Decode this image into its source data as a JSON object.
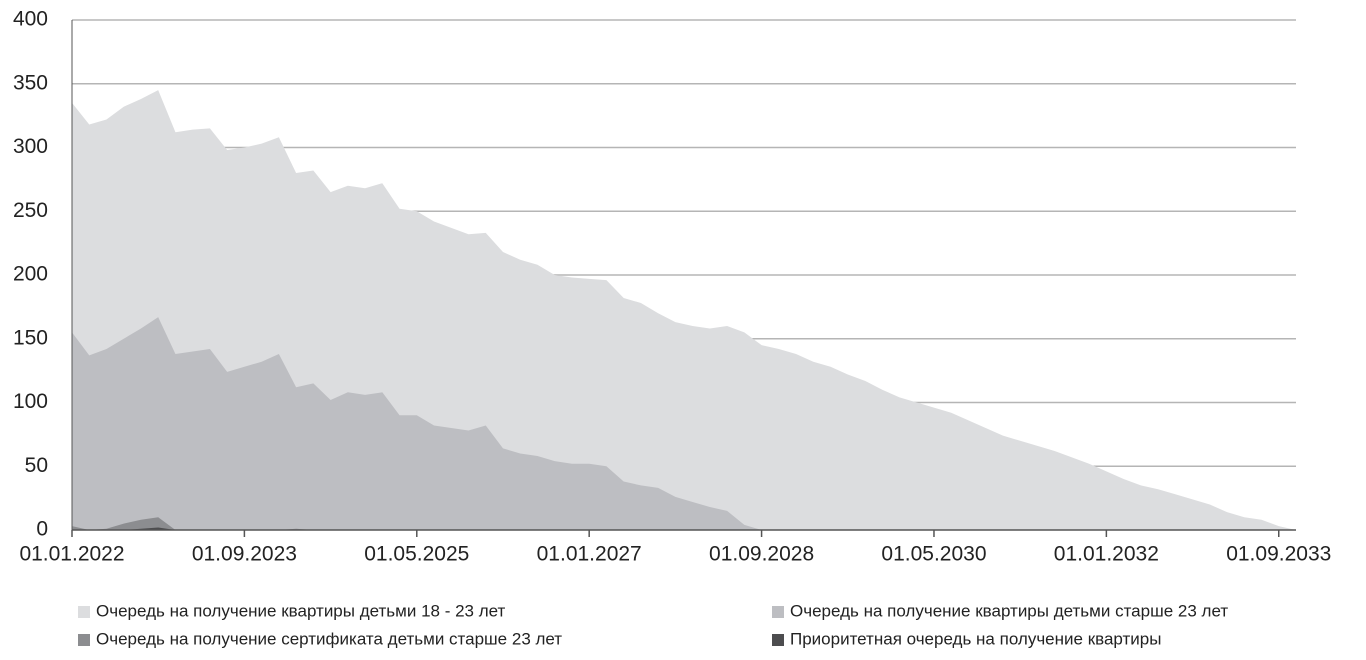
{
  "chart_data": {
    "type": "area",
    "x": [
      "01.01.2022",
      "01.03.2022",
      "01.05.2022",
      "01.07.2022",
      "01.09.2022",
      "01.11.2022",
      "01.01.2023",
      "01.03.2023",
      "01.05.2023",
      "01.07.2023",
      "01.09.2023",
      "01.11.2023",
      "01.01.2024",
      "01.03.2024",
      "01.05.2024",
      "01.07.2024",
      "01.09.2024",
      "01.11.2024",
      "01.01.2025",
      "01.03.2025",
      "01.05.2025",
      "01.07.2025",
      "01.09.2025",
      "01.11.2025",
      "01.01.2026",
      "01.03.2026",
      "01.05.2026",
      "01.07.2026",
      "01.09.2026",
      "01.11.2026",
      "01.01.2027",
      "01.03.2027",
      "01.05.2027",
      "01.07.2027",
      "01.09.2027",
      "01.11.2027",
      "01.01.2028",
      "01.03.2028",
      "01.05.2028",
      "01.07.2028",
      "01.09.2028",
      "01.11.2028",
      "01.01.2029",
      "01.03.2029",
      "01.05.2029",
      "01.07.2029",
      "01.09.2029",
      "01.11.2029",
      "01.01.2030",
      "01.03.2030",
      "01.05.2030",
      "01.07.2030",
      "01.09.2030",
      "01.11.2030",
      "01.01.2031",
      "01.03.2031",
      "01.05.2031",
      "01.07.2031",
      "01.09.2031",
      "01.11.2031",
      "01.01.2032",
      "01.03.2032",
      "01.05.2032",
      "01.07.2032",
      "01.09.2032",
      "01.11.2032",
      "01.01.2033",
      "01.03.2033",
      "01.05.2033",
      "01.07.2033",
      "01.09.2033",
      "01.11.2033"
    ],
    "series": [
      {
        "name": "Очередь на получение квартиры детьми 18 - 23 лет",
        "color": "#dcdddf",
        "values": [
          335,
          318,
          322,
          332,
          338,
          345,
          312,
          314,
          315,
          298,
          300,
          303,
          308,
          280,
          282,
          265,
          270,
          268,
          272,
          252,
          250,
          242,
          237,
          232,
          233,
          218,
          212,
          208,
          200,
          198,
          197,
          196,
          182,
          178,
          170,
          163,
          160,
          158,
          160,
          155,
          145,
          142,
          138,
          132,
          128,
          122,
          117,
          110,
          104,
          100,
          96,
          92,
          86,
          80,
          74,
          70,
          66,
          62,
          57,
          52,
          46,
          40,
          35,
          32,
          28,
          24,
          20,
          14,
          10,
          8,
          3,
          0
        ]
      },
      {
        "name": "Очередь на получение квартиры детьми старше 23 лет",
        "color": "#bdbec2",
        "values": [
          155,
          137,
          142,
          150,
          158,
          167,
          138,
          140,
          142,
          124,
          128,
          132,
          138,
          112,
          115,
          102,
          108,
          106,
          108,
          90,
          90,
          82,
          80,
          78,
          82,
          64,
          60,
          58,
          54,
          52,
          52,
          50,
          38,
          35,
          33,
          26,
          22,
          18,
          15,
          4,
          0,
          0,
          0,
          0,
          0,
          0,
          0,
          0,
          0,
          0,
          0,
          0,
          0,
          0,
          0,
          0,
          0,
          0,
          0,
          0,
          0,
          0,
          0,
          0,
          0,
          0,
          0,
          0,
          0,
          0,
          0,
          0
        ]
      },
      {
        "name": "Очередь на получение сертификата детьми старше 23 лет",
        "color": "#8c8d90",
        "values": [
          3,
          0,
          1,
          5,
          8,
          10,
          0,
          0,
          0,
          0,
          0,
          0,
          0,
          1,
          0,
          0,
          0,
          0,
          0,
          0,
          0,
          0,
          0,
          0,
          0,
          0,
          0,
          0,
          0,
          0,
          0,
          0,
          0,
          0,
          0,
          0,
          0,
          0,
          0,
          0,
          0,
          0,
          0,
          0,
          0,
          0,
          0,
          0,
          0,
          0,
          0,
          0,
          0,
          0,
          0,
          0,
          0,
          0,
          0,
          0,
          0,
          0,
          0,
          0,
          0,
          0,
          0,
          0,
          0,
          0,
          0,
          0
        ]
      },
      {
        "name": "Приоритетная очередь на получение квартиры",
        "color": "#4d4d4f",
        "values": [
          0,
          0,
          0,
          0,
          1,
          2,
          0,
          0,
          0,
          0,
          0,
          0,
          0,
          0,
          0,
          0,
          0,
          0,
          0,
          0,
          0,
          0,
          0,
          0,
          0,
          0,
          0,
          0,
          0,
          0,
          0,
          0,
          0,
          0,
          0,
          0,
          0,
          0,
          0,
          0,
          0,
          0,
          0,
          0,
          0,
          0,
          0,
          0,
          0,
          0,
          0,
          0,
          0,
          0,
          0,
          0,
          0,
          0,
          0,
          0,
          0,
          0,
          0,
          0,
          0,
          0,
          0,
          0,
          0,
          0,
          0,
          0
        ]
      }
    ],
    "xlim": [
      "01.01.2022",
      "01.11.2033"
    ],
    "xticks": [
      "01.01.2022",
      "01.09.2023",
      "01.05.2025",
      "01.01.2027",
      "01.09.2028",
      "01.05.2030",
      "01.01.2032",
      "01.09.2033"
    ],
    "ylim": [
      0,
      400
    ],
    "yticks": [
      0,
      50,
      100,
      150,
      200,
      250,
      300,
      350,
      400
    ],
    "grid": true,
    "legend": "bottom"
  }
}
